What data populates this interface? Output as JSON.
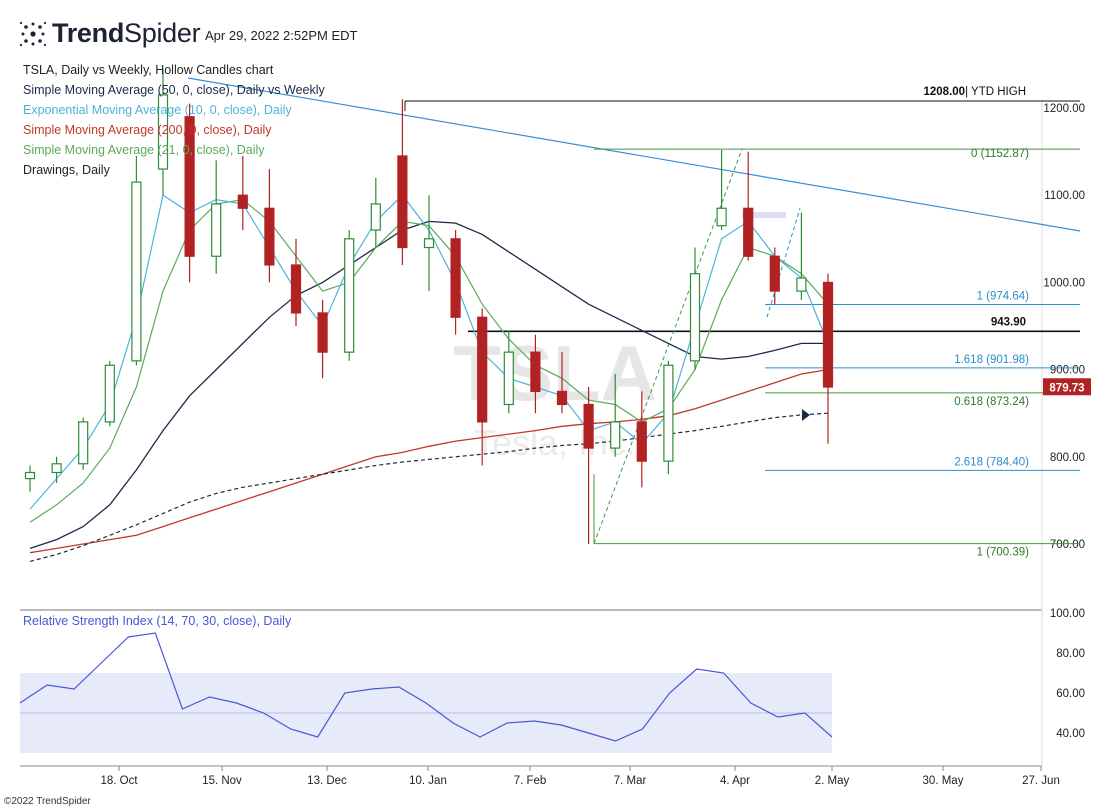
{
  "header": {
    "brand": "TrendSpider",
    "timestamp": "Apr 29, 2022 2:52PM EDT"
  },
  "legend": [
    {
      "text": "TSLA, Daily vs Weekly, Hollow Candles chart",
      "color": "#222222"
    },
    {
      "text": "Simple Moving Average (50, 0, close), Daily vs Weekly",
      "color": "#1c2a4a"
    },
    {
      "text": "Exponential Moving Average (10, 0, close), Daily",
      "color": "#4fb3d9"
    },
    {
      "text": "Simple Moving Average (200, 0, close), Daily",
      "color": "#c0392b"
    },
    {
      "text": "Simple Moving Average (21, 0, close), Daily",
      "color": "#5aab5a"
    },
    {
      "text": "Drawings, Daily",
      "color": "#222222"
    }
  ],
  "copyright": "©2022 TrendSpider",
  "watermark": {
    "symbol": "TSLA",
    "name": "Tesla, Inc."
  },
  "colors": {
    "up": "#2e8b3a",
    "down": "#b22222",
    "sma50": "#1c2a4a",
    "ema10": "#4fb3d9",
    "sma200": "#c0392b",
    "sma21": "#5aab5a",
    "trendline": "#3b8fd9",
    "rsi": "#4a56d8",
    "rsi_band": "#e7eaf8",
    "price_tag": "#b22222"
  },
  "chart_data": [
    {
      "type": "candlestick",
      "symbol": "TSLA",
      "timeframe": "Daily",
      "y_axis": {
        "ticks": [
          "1200.00",
          "1100.00",
          "1000.00",
          "900.00",
          "800.00",
          "700.00"
        ],
        "range": [
          672,
          1222
        ]
      },
      "x_axis": {
        "labels": [
          "18. Oct",
          "15. Nov",
          "13. Dec",
          "10. Jan",
          "7. Feb",
          "7. Mar",
          "4. Apr",
          "2. May",
          "30. May",
          "27. Jun"
        ]
      },
      "last_price": "879.73",
      "horizontal_levels": [
        {
          "price": 1208.0,
          "label_bold": "1208.00",
          "label": "| YTD HIGH",
          "color": "#111111"
        },
        {
          "price": 943.9,
          "label_bold": "943.90",
          "label": "",
          "color": "#111111"
        }
      ],
      "fib_extension_up": [
        {
          "ratio": "0",
          "price": 1152.87,
          "label": "0 (1152.87)",
          "color": "#3f9a3f"
        },
        {
          "ratio": "1",
          "price": 700.39,
          "label": "1 (700.39)",
          "color": "#3f9a3f"
        },
        {
          "ratio": "0.618",
          "price": 873.24,
          "label": "0.618 (873.24)",
          "color": "#3f9a3f"
        }
      ],
      "fib_extension_down": [
        {
          "ratio": "1",
          "price": 974.64,
          "label": "1 (974.64)",
          "color": "#2b8fc9"
        },
        {
          "ratio": "1.618",
          "price": 901.98,
          "label": "1.618 (901.98)",
          "color": "#2b8fc9"
        },
        {
          "ratio": "2.618",
          "price": 784.4,
          "label": "2.618 (784.40)",
          "color": "#2b8fc9"
        }
      ],
      "candles": [
        {
          "date": "2021-09-27",
          "o": 775,
          "h": 790,
          "l": 760,
          "c": 782
        },
        {
          "date": "2021-10-04",
          "o": 782,
          "h": 800,
          "l": 770,
          "c": 792
        },
        {
          "date": "2021-10-11",
          "o": 792,
          "h": 845,
          "l": 785,
          "c": 840
        },
        {
          "date": "2021-10-18",
          "o": 840,
          "h": 910,
          "l": 835,
          "c": 905
        },
        {
          "date": "2021-10-25",
          "o": 910,
          "h": 1145,
          "l": 905,
          "c": 1115
        },
        {
          "date": "2021-11-01",
          "o": 1130,
          "h": 1243,
          "l": 1100,
          "c": 1215
        },
        {
          "date": "2021-11-08",
          "o": 1190,
          "h": 1205,
          "l": 1000,
          "c": 1030
        },
        {
          "date": "2021-11-15",
          "o": 1030,
          "h": 1140,
          "l": 1010,
          "c": 1090
        },
        {
          "date": "2021-11-22",
          "o": 1100,
          "h": 1145,
          "l": 1060,
          "c": 1085
        },
        {
          "date": "2021-11-29",
          "o": 1085,
          "h": 1130,
          "l": 1000,
          "c": 1020
        },
        {
          "date": "2021-12-06",
          "o": 1020,
          "h": 1050,
          "l": 950,
          "c": 965
        },
        {
          "date": "2021-12-13",
          "o": 965,
          "h": 980,
          "l": 890,
          "c": 920
        },
        {
          "date": "2021-12-20",
          "o": 920,
          "h": 1060,
          "l": 910,
          "c": 1050
        },
        {
          "date": "2021-12-27",
          "o": 1060,
          "h": 1120,
          "l": 1040,
          "c": 1090
        },
        {
          "date": "2022-01-03",
          "o": 1145,
          "h": 1210,
          "l": 1020,
          "c": 1040
        },
        {
          "date": "2022-01-10",
          "o": 1040,
          "h": 1100,
          "l": 990,
          "c": 1050
        },
        {
          "date": "2022-01-17",
          "o": 1050,
          "h": 1060,
          "l": 940,
          "c": 960
        },
        {
          "date": "2022-01-24",
          "o": 960,
          "h": 970,
          "l": 790,
          "c": 840
        },
        {
          "date": "2022-01-31",
          "o": 860,
          "h": 945,
          "l": 850,
          "c": 920
        },
        {
          "date": "2022-02-07",
          "o": 920,
          "h": 940,
          "l": 850,
          "c": 875
        },
        {
          "date": "2022-02-14",
          "o": 875,
          "h": 920,
          "l": 850,
          "c": 860
        },
        {
          "date": "2022-02-21",
          "o": 860,
          "h": 880,
          "l": 700,
          "c": 810
        },
        {
          "date": "2022-02-28",
          "o": 810,
          "h": 895,
          "l": 800,
          "c": 840
        },
        {
          "date": "2022-03-07",
          "o": 840,
          "h": 875,
          "l": 765,
          "c": 795
        },
        {
          "date": "2022-03-14",
          "o": 795,
          "h": 910,
          "l": 780,
          "c": 905
        },
        {
          "date": "2022-03-21",
          "o": 910,
          "h": 1040,
          "l": 900,
          "c": 1010
        },
        {
          "date": "2022-03-28",
          "o": 1065,
          "h": 1152,
          "l": 1060,
          "c": 1085
        },
        {
          "date": "2022-04-04",
          "o": 1085,
          "h": 1150,
          "l": 1025,
          "c": 1030
        },
        {
          "date": "2022-04-11",
          "o": 1030,
          "h": 1040,
          "l": 975,
          "c": 990
        },
        {
          "date": "2022-04-18",
          "o": 990,
          "h": 1080,
          "l": 980,
          "c": 1005
        },
        {
          "date": "2022-04-25",
          "o": 1000,
          "h": 1010,
          "l": 815,
          "c": 880
        }
      ],
      "moving_averages": {
        "sma50": [
          695,
          705,
          720,
          745,
          785,
          830,
          870,
          900,
          930,
          960,
          985,
          1000,
          1020,
          1040,
          1060,
          1070,
          1068,
          1055,
          1035,
          1015,
          995,
          975,
          960,
          945,
          930,
          915,
          912,
          915,
          922,
          930,
          930
        ],
        "sma200": [
          690,
          695,
          700,
          705,
          710,
          720,
          730,
          740,
          750,
          760,
          770,
          780,
          790,
          800,
          805,
          812,
          818,
          822,
          826,
          830,
          835,
          838,
          840,
          843,
          847,
          855,
          865,
          875,
          885,
          895,
          900
        ],
        "sma200_weekly": [
          680,
          688,
          698,
          710,
          722,
          735,
          748,
          758,
          765,
          770,
          775,
          780,
          785,
          790,
          794,
          797,
          800,
          803,
          806,
          810,
          813,
          815,
          818,
          822,
          826,
          830,
          835,
          840,
          845,
          848,
          850
        ],
        "ema10": [
          740,
          775,
          810,
          860,
          960,
          1100,
          1080,
          1095,
          1090,
          1040,
          990,
          950,
          1020,
          1070,
          1100,
          1060,
          1000,
          920,
          890,
          880,
          870,
          830,
          840,
          815,
          850,
          950,
          1050,
          1070,
          1030,
          1005,
          930
        ],
        "sma21": [
          725,
          745,
          770,
          810,
          880,
          990,
          1060,
          1090,
          1095,
          1070,
          1030,
          990,
          1000,
          1040,
          1070,
          1065,
          1030,
          975,
          935,
          905,
          890,
          865,
          860,
          840,
          855,
          900,
          980,
          1040,
          1030,
          1010,
          975
        ]
      }
    },
    {
      "type": "line",
      "title": "Relative Strength Index (14, 70, 30, close), Daily",
      "y_axis": {
        "ticks": [
          "100.00",
          "80.00",
          "60.00",
          "40.00"
        ],
        "range": [
          28,
          100
        ]
      },
      "bands": [
        30,
        50,
        70
      ],
      "values": [
        55,
        64,
        62,
        75,
        88,
        90,
        52,
        58,
        55,
        50,
        42,
        38,
        60,
        62,
        63,
        55,
        45,
        38,
        45,
        46,
        44,
        40,
        36,
        42,
        60,
        72,
        70,
        55,
        48,
        50,
        38
      ]
    }
  ]
}
